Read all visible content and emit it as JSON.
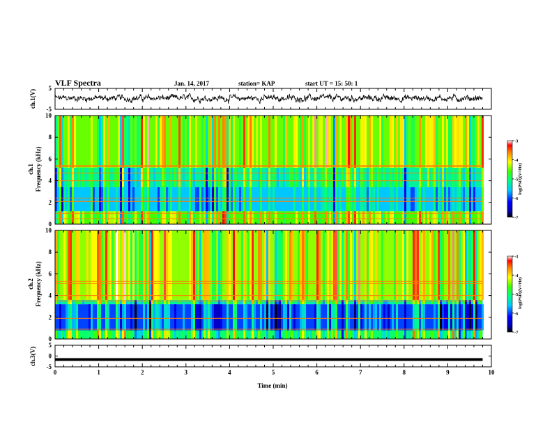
{
  "header": {
    "title": "VLF Spectra",
    "date": "Jan. 14, 2017",
    "station": "station= KAP",
    "start": "start  UT  =   15: 50: 1"
  },
  "chart_data": [
    {
      "type": "line",
      "id": "ch1-waveform",
      "ylabel": "ch.1(V)",
      "ylim": [
        -5,
        5
      ],
      "yticks": [
        5,
        -5
      ],
      "xlim": [
        0,
        10
      ],
      "note": "noisy waveform roughly between -2 and 3 V"
    },
    {
      "type": "heatmap",
      "id": "ch1-spectrogram",
      "ylabel_top": "ch.1",
      "ylabel": "Frequency  (kHz)",
      "ylim": [
        0,
        10
      ],
      "yticks": [
        0,
        2,
        4,
        6,
        8,
        10
      ],
      "xlim": [
        0,
        9.8
      ],
      "colorbar": {
        "label": "log(PSD)(V²/Hz)",
        "range": [
          -7,
          -3
        ],
        "ticks": [
          -3,
          -4,
          -5,
          -6,
          -7
        ]
      },
      "bands": [
        {
          "from": 0,
          "to": 1.2,
          "level": -4.6
        },
        {
          "from": 1.2,
          "to": 3.4,
          "level": -5.6
        },
        {
          "from": 3.4,
          "to": 5.2,
          "level": -5.2
        },
        {
          "from": 5.2,
          "to": 10,
          "level": -4.5
        }
      ],
      "lines_khz": [
        0.5,
        1.0,
        2.1,
        2.4,
        4.0,
        4.7,
        5.3,
        5.4
      ]
    },
    {
      "type": "heatmap",
      "id": "ch2-spectrogram",
      "ylabel_top": "ch.2",
      "ylabel": "Frequency  (kHz)",
      "ylim": [
        0,
        10
      ],
      "yticks": [
        0,
        2,
        4,
        6,
        8,
        10
      ],
      "xlim": [
        0,
        9.8
      ],
      "colorbar": {
        "label": "log(PSD)(V²/Hz)",
        "range": [
          -7,
          -3
        ],
        "ticks": [
          -3,
          -4,
          -5,
          -6,
          -7
        ]
      },
      "bands": [
        {
          "from": 0,
          "to": 0.8,
          "level": -5.0
        },
        {
          "from": 0.8,
          "to": 3.2,
          "level": -6.0
        },
        {
          "from": 3.2,
          "to": 3.6,
          "level": -5.2
        },
        {
          "from": 3.6,
          "to": 10,
          "level": -4.4
        }
      ],
      "lines_khz": [
        0.9,
        1.9,
        3.5,
        4.0,
        5.1,
        5.3
      ]
    },
    {
      "type": "line",
      "id": "ch3-waveform",
      "ylabel": "ch.3(V)",
      "ylim": [
        -5,
        5
      ],
      "yticks": [
        5,
        0,
        -5
      ],
      "xlim": [
        0,
        10
      ],
      "x": [
        0,
        9.8
      ],
      "y": [
        -1.6,
        -1.6
      ],
      "xlabel": "Time  (min)",
      "xticks": [
        0,
        1,
        2,
        3,
        4,
        5,
        6,
        7,
        8,
        9,
        10
      ]
    }
  ]
}
